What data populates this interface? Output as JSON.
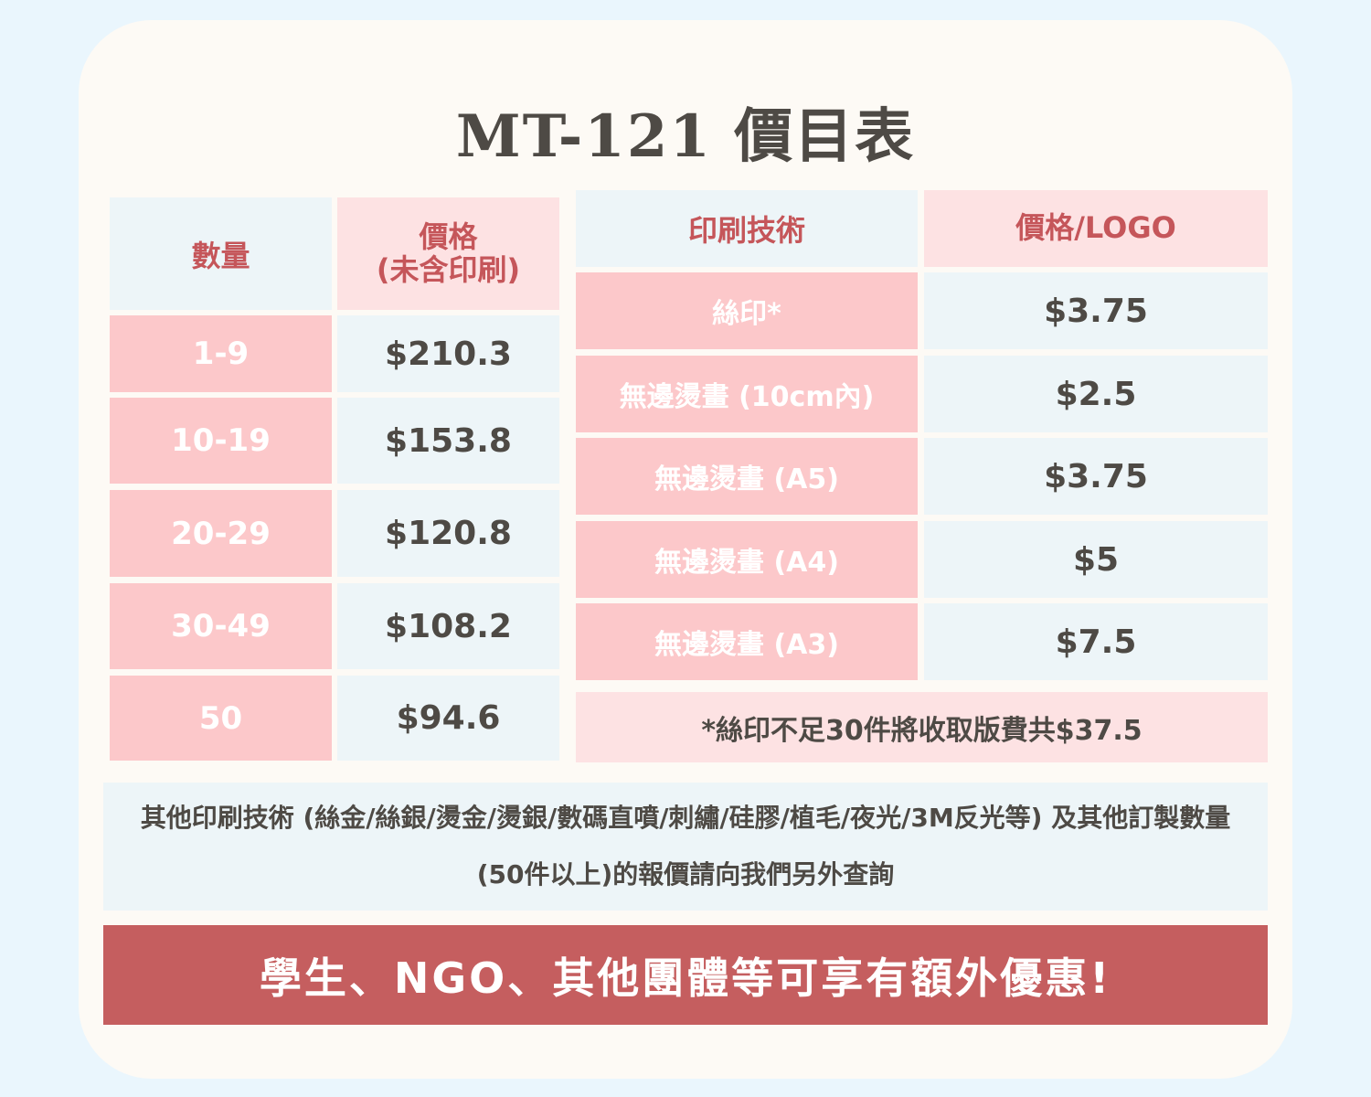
{
  "title": "MT-121 價目表",
  "left_table": {
    "header_qty": "數量",
    "header_price": "價格\n(未含印刷)",
    "rows": [
      {
        "qty": "1-9",
        "price": "$210.3"
      },
      {
        "qty": "10-19",
        "price": "$153.8"
      },
      {
        "qty": "20-29",
        "price": "$120.8"
      },
      {
        "qty": "30-49",
        "price": "$108.2"
      },
      {
        "qty": "50",
        "price": "$94.6"
      }
    ]
  },
  "right_table": {
    "header_tech": "印刷技術",
    "header_price": "價格/LOGO",
    "rows": [
      {
        "tech": "絲印*",
        "price": "$3.75"
      },
      {
        "tech": "無邊燙畫 (10cm內)",
        "price": "$2.5"
      },
      {
        "tech": "無邊燙畫 (A5)",
        "price": "$3.75"
      },
      {
        "tech": "無邊燙畫 (A4)",
        "price": "$5"
      },
      {
        "tech": "無邊燙畫 (A3)",
        "price": "$7.5"
      }
    ],
    "note": "*絲印不足30件將收取版費共$37.5"
  },
  "info_text": "其他印刷技術 (絲金/絲銀/燙金/燙銀/數碼直噴/刺繡/硅膠/植毛/夜光/3M反光等) 及其他訂製數量 (50件以上)的報價請向我們另外查詢",
  "banner_text": "學生、NGO、其他團體等可享有額外優惠!",
  "colors": {
    "background": "#eaf6fd",
    "card": "#fdfaf5",
    "pink_cell": "#fcc8ca",
    "light_pink_cell": "#fde2e3",
    "light_blue_cell": "#edf5f8",
    "accent_red": "#c5565a",
    "banner": "#c55e5f",
    "dark_text": "#4e4a45"
  }
}
